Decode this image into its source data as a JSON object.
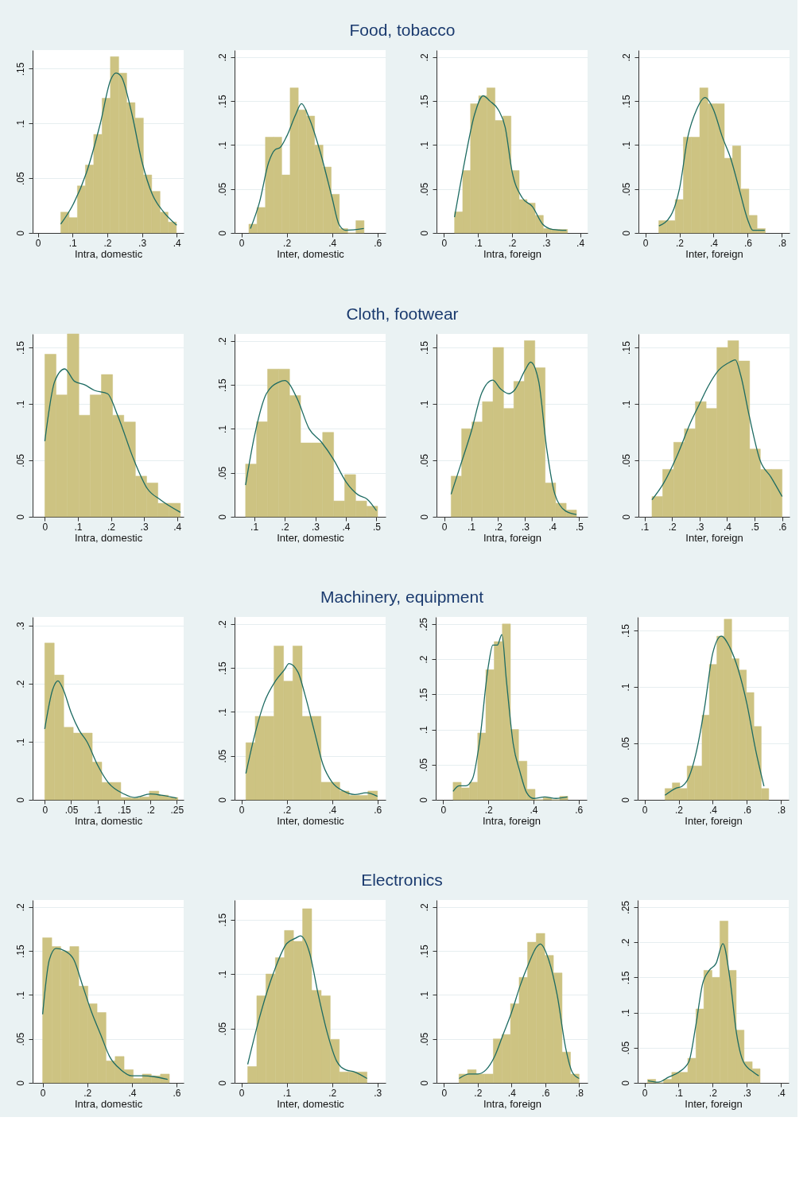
{
  "chart_data": [
    {
      "type": "histogram",
      "xlabel": "Intra, domestic",
      "xlim": [
        -0.015,
        0.42
      ],
      "ylim": [
        0,
        0.167
      ],
      "grid": "y",
      "xticks": [
        {
          "value": 0,
          "label": "0"
        },
        {
          "value": 0.1,
          "label": ".1"
        },
        {
          "value": 0.2,
          "label": ".2"
        },
        {
          "value": 0.3,
          "label": ".3"
        },
        {
          "value": 0.4,
          "label": ".4"
        }
      ],
      "yticks": [
        {
          "value": 0,
          "label": "0"
        },
        {
          "value": 0.05,
          "label": ".05"
        },
        {
          "value": 0.1,
          "label": ".1"
        },
        {
          "value": 0.15,
          "label": ".15"
        }
      ],
      "series": [
        {
          "color": "#cdc382",
          "bins": [
            0.066,
            0.09,
            0.114,
            0.137,
            0.161,
            0.185,
            0.209,
            0.233,
            0.256,
            0.28,
            0.304,
            0.328,
            0.352,
            0.375,
            0.399
          ],
          "values": [
            0.019,
            0.014,
            0.043,
            0.062,
            0.09,
            0.123,
            0.161,
            0.146,
            0.119,
            0.105,
            0.053,
            0.038,
            0.019,
            0.01
          ]
        },
        {
          "type": "line",
          "color": "#1d6b62",
          "x": [
            0.066,
            0.1,
            0.14,
            0.18,
            0.21,
            0.225,
            0.24,
            0.27,
            0.3,
            0.33,
            0.36,
            0.4
          ],
          "values": [
            0.008,
            0.025,
            0.055,
            0.1,
            0.14,
            0.146,
            0.143,
            0.11,
            0.065,
            0.035,
            0.02,
            0.007
          ]
        }
      ]
    },
    {
      "type": "histogram",
      "title": "Food, tobacco",
      "xlabel": "Inter, domestic",
      "xlim": [
        -0.03,
        0.636
      ],
      "ylim": [
        0,
        0.208
      ],
      "grid": "y",
      "xticks": [
        {
          "value": 0,
          "label": "0"
        },
        {
          "value": 0.2,
          "label": ".2"
        },
        {
          "value": 0.4,
          "label": ".4"
        },
        {
          "value": 0.6,
          "label": ".6"
        }
      ],
      "yticks": [
        {
          "value": 0,
          "label": "0"
        },
        {
          "value": 0.05,
          "label": ".05"
        },
        {
          "value": 0.1,
          "label": ".1"
        },
        {
          "value": 0.15,
          "label": ".15"
        },
        {
          "value": 0.2,
          "label": ".2"
        }
      ],
      "series": [
        {
          "color": "#cdc382",
          "bins": [
            0.033,
            0.069,
            0.106,
            0.142,
            0.178,
            0.215,
            0.251,
            0.287,
            0.323,
            0.36,
            0.396,
            0.432,
            0.469,
            0.505,
            0.541
          ],
          "values": [
            0.01,
            0.029,
            0.109,
            0.109,
            0.066,
            0.165,
            0.14,
            0.133,
            0.1,
            0.075,
            0.044,
            0.005,
            0,
            0.014
          ]
        },
        {
          "type": "line",
          "color": "#1d6b62",
          "x": [
            0.04,
            0.08,
            0.12,
            0.15,
            0.17,
            0.2,
            0.24,
            0.265,
            0.3,
            0.35,
            0.4,
            0.43,
            0.46,
            0.54
          ],
          "values": [
            0.005,
            0.035,
            0.08,
            0.095,
            0.097,
            0.11,
            0.135,
            0.147,
            0.13,
            0.09,
            0.04,
            0.01,
            0.003,
            0.005
          ]
        }
      ]
    },
    {
      "type": "histogram",
      "xlabel": "Intra, foreign",
      "xlim": [
        -0.022,
        0.422
      ],
      "ylim": [
        0,
        0.208
      ],
      "grid": "y",
      "xticks": [
        {
          "value": 0,
          "label": "0"
        },
        {
          "value": 0.1,
          "label": ".1"
        },
        {
          "value": 0.2,
          "label": ".2"
        },
        {
          "value": 0.3,
          "label": ".3"
        },
        {
          "value": 0.4,
          "label": ".4"
        }
      ],
      "yticks": [
        {
          "value": 0,
          "label": "0"
        },
        {
          "value": 0.05,
          "label": ".05"
        },
        {
          "value": 0.1,
          "label": ".1"
        },
        {
          "value": 0.15,
          "label": ".15"
        },
        {
          "value": 0.2,
          "label": ".2"
        }
      ],
      "series": [
        {
          "color": "#cdc382",
          "bins": [
            0.031,
            0.055,
            0.078,
            0.102,
            0.126,
            0.15,
            0.173,
            0.197,
            0.221,
            0.244,
            0.268,
            0.292,
            0.315,
            0.339,
            0.363
          ],
          "values": [
            0.024,
            0.071,
            0.147,
            0.156,
            0.165,
            0.128,
            0.133,
            0.071,
            0.038,
            0.034,
            0.02,
            0.005,
            0.004,
            0.004
          ]
        },
        {
          "type": "line",
          "color": "#1d6b62",
          "x": [
            0.031,
            0.06,
            0.09,
            0.115,
            0.135,
            0.16,
            0.18,
            0.2,
            0.23,
            0.26,
            0.29,
            0.32,
            0.36
          ],
          "values": [
            0.018,
            0.08,
            0.135,
            0.156,
            0.15,
            0.14,
            0.12,
            0.07,
            0.04,
            0.03,
            0.01,
            0.004,
            0.003
          ]
        }
      ]
    },
    {
      "type": "histogram",
      "xlabel": "Inter, foreign",
      "xlim": [
        -0.04,
        0.845
      ],
      "ylim": [
        0,
        0.208
      ],
      "grid": "y",
      "xticks": [
        {
          "value": 0,
          "label": "0"
        },
        {
          "value": 0.2,
          "label": ".2"
        },
        {
          "value": 0.4,
          "label": ".4"
        },
        {
          "value": 0.6,
          "label": ".6"
        },
        {
          "value": 0.8,
          "label": ".8"
        }
      ],
      "yticks": [
        {
          "value": 0,
          "label": "0"
        },
        {
          "value": 0.05,
          "label": ".05"
        },
        {
          "value": 0.1,
          "label": ".1"
        },
        {
          "value": 0.15,
          "label": ".15"
        },
        {
          "value": 0.2,
          "label": ".2"
        }
      ],
      "series": [
        {
          "color": "#cdc382",
          "bins": [
            0.079,
            0.127,
            0.175,
            0.223,
            0.271,
            0.319,
            0.367,
            0.415,
            0.463,
            0.511,
            0.559,
            0.607,
            0.655,
            0.703
          ],
          "values": [
            0.014,
            0.014,
            0.038,
            0.109,
            0.109,
            0.165,
            0.147,
            0.147,
            0.085,
            0.099,
            0.05,
            0.02,
            0.005
          ]
        },
        {
          "type": "line",
          "color": "#1d6b62",
          "x": [
            0.08,
            0.15,
            0.2,
            0.25,
            0.3,
            0.35,
            0.4,
            0.45,
            0.5,
            0.55,
            0.6,
            0.63,
            0.7
          ],
          "values": [
            0.008,
            0.02,
            0.05,
            0.11,
            0.14,
            0.154,
            0.14,
            0.11,
            0.085,
            0.05,
            0.015,
            0.003,
            0.003
          ]
        }
      ]
    },
    {
      "type": "histogram",
      "xlabel": "Intra, domestic",
      "xlim": [
        -0.037,
        0.42
      ],
      "ylim": [
        0,
        0.162
      ],
      "grid": "y",
      "xticks": [
        {
          "value": 0,
          "label": "0"
        },
        {
          "value": 0.1,
          "label": ".1"
        },
        {
          "value": 0.2,
          "label": ".2"
        },
        {
          "value": 0.3,
          "label": ".3"
        },
        {
          "value": 0.4,
          "label": ".4"
        }
      ],
      "yticks": [
        {
          "value": 0,
          "label": "0"
        },
        {
          "value": 0.05,
          "label": ".05"
        },
        {
          "value": 0.1,
          "label": ".1"
        },
        {
          "value": 0.15,
          "label": ".15"
        }
      ],
      "series": [
        {
          "color": "#cdc382",
          "bins": [
            0,
            0.034,
            0.068,
            0.103,
            0.137,
            0.171,
            0.205,
            0.239,
            0.274,
            0.308,
            0.342,
            0.376,
            0.41
          ],
          "values": [
            0.144,
            0.108,
            0.162,
            0.09,
            0.108,
            0.126,
            0.09,
            0.084,
            0.036,
            0.03,
            0.012,
            0.012
          ]
        },
        {
          "type": "line",
          "color": "#1d6b62",
          "x": [
            0,
            0.03,
            0.06,
            0.09,
            0.12,
            0.15,
            0.19,
            0.22,
            0.27,
            0.31,
            0.35,
            0.41
          ],
          "values": [
            0.067,
            0.12,
            0.131,
            0.12,
            0.117,
            0.112,
            0.109,
            0.09,
            0.05,
            0.025,
            0.015,
            0.004
          ]
        }
      ]
    },
    {
      "type": "histogram",
      "title": "Cloth, footwear",
      "xlabel": "Inter, domestic",
      "xlim": [
        0.036,
        0.53
      ],
      "ylim": [
        0,
        0.208
      ],
      "grid": "y",
      "xticks": [
        {
          "value": 0.1,
          "label": ".1"
        },
        {
          "value": 0.2,
          "label": ".2"
        },
        {
          "value": 0.3,
          "label": ".3"
        },
        {
          "value": 0.4,
          "label": ".4"
        },
        {
          "value": 0.5,
          "label": ".5"
        }
      ],
      "yticks": [
        {
          "value": 0,
          "label": "0"
        },
        {
          "value": 0.05,
          "label": ".05"
        },
        {
          "value": 0.1,
          "label": ".1"
        },
        {
          "value": 0.15,
          "label": ".15"
        },
        {
          "value": 0.2,
          "label": ".2"
        }
      ],
      "series": [
        {
          "color": "#cdc382",
          "bins": [
            0.072,
            0.108,
            0.144,
            0.18,
            0.216,
            0.252,
            0.288,
            0.324,
            0.36,
            0.396,
            0.432,
            0.468,
            0.504
          ],
          "values": [
            0.06,
            0.108,
            0.168,
            0.168,
            0.138,
            0.084,
            0.084,
            0.096,
            0.018,
            0.048,
            0.018,
            0.012
          ]
        },
        {
          "type": "line",
          "color": "#1d6b62",
          "x": [
            0.072,
            0.1,
            0.14,
            0.18,
            0.2,
            0.24,
            0.28,
            0.32,
            0.36,
            0.4,
            0.44,
            0.47,
            0.5
          ],
          "values": [
            0.036,
            0.09,
            0.14,
            0.153,
            0.155,
            0.135,
            0.1,
            0.085,
            0.065,
            0.04,
            0.025,
            0.02,
            0.007
          ]
        }
      ]
    },
    {
      "type": "histogram",
      "xlabel": "Intra, foreign",
      "xlim": [
        -0.028,
        0.531
      ],
      "ylim": [
        0,
        0.162
      ],
      "grid": "y",
      "xticks": [
        {
          "value": 0,
          "label": "0"
        },
        {
          "value": 0.1,
          "label": ".1"
        },
        {
          "value": 0.2,
          "label": ".2"
        },
        {
          "value": 0.3,
          "label": ".3"
        },
        {
          "value": 0.4,
          "label": ".4"
        },
        {
          "value": 0.5,
          "label": ".5"
        }
      ],
      "yticks": [
        {
          "value": 0,
          "label": "0"
        },
        {
          "value": 0.05,
          "label": ".05"
        },
        {
          "value": 0.1,
          "label": ".1"
        },
        {
          "value": 0.15,
          "label": ".15"
        }
      ],
      "series": [
        {
          "color": "#cdc382",
          "bins": [
            0.026,
            0.065,
            0.103,
            0.142,
            0.181,
            0.22,
            0.258,
            0.297,
            0.336,
            0.374,
            0.413,
            0.452,
            0.49
          ],
          "values": [
            0.036,
            0.078,
            0.084,
            0.102,
            0.15,
            0.096,
            0.12,
            0.156,
            0.132,
            0.03,
            0.012,
            0.006
          ]
        },
        {
          "type": "line",
          "color": "#1d6b62",
          "x": [
            0.026,
            0.06,
            0.1,
            0.14,
            0.18,
            0.21,
            0.24,
            0.26,
            0.3,
            0.32,
            0.35,
            0.38,
            0.41,
            0.45,
            0.49
          ],
          "values": [
            0.02,
            0.045,
            0.075,
            0.11,
            0.121,
            0.113,
            0.109,
            0.112,
            0.13,
            0.137,
            0.12,
            0.06,
            0.02,
            0.005,
            0.002
          ]
        }
      ]
    },
    {
      "type": "histogram",
      "xlabel": "Inter, foreign",
      "xlim": [
        0.078,
        0.627
      ],
      "ylim": [
        0,
        0.162
      ],
      "grid": "y",
      "xticks": [
        {
          "value": 0.1,
          "label": ".1"
        },
        {
          "value": 0.2,
          "label": ".2"
        },
        {
          "value": 0.3,
          "label": ".3"
        },
        {
          "value": 0.4,
          "label": ".4"
        },
        {
          "value": 0.5,
          "label": ".5"
        },
        {
          "value": 0.6,
          "label": ".6"
        }
      ],
      "yticks": [
        {
          "value": 0,
          "label": "0"
        },
        {
          "value": 0.05,
          "label": ".05"
        },
        {
          "value": 0.1,
          "label": ".1"
        },
        {
          "value": 0.15,
          "label": ".15"
        }
      ],
      "series": [
        {
          "color": "#cdc382",
          "bins": [
            0.127,
            0.166,
            0.206,
            0.245,
            0.285,
            0.324,
            0.363,
            0.403,
            0.442,
            0.482,
            0.521,
            0.56,
            0.6
          ],
          "values": [
            0.018,
            0.042,
            0.066,
            0.078,
            0.102,
            0.096,
            0.15,
            0.156,
            0.138,
            0.06,
            0.042,
            0.042
          ]
        },
        {
          "type": "line",
          "color": "#1d6b62",
          "x": [
            0.127,
            0.17,
            0.22,
            0.27,
            0.3,
            0.33,
            0.37,
            0.41,
            0.43,
            0.45,
            0.48,
            0.52,
            0.56,
            0.6
          ],
          "values": [
            0.015,
            0.03,
            0.055,
            0.085,
            0.1,
            0.115,
            0.13,
            0.137,
            0.139,
            0.125,
            0.09,
            0.05,
            0.035,
            0.018
          ]
        }
      ]
    },
    {
      "type": "histogram",
      "xlabel": "Intra, domestic",
      "xlim": [
        -0.023,
        0.263
      ],
      "ylim": [
        0,
        0.315
      ],
      "grid": "y",
      "xticks": [
        {
          "value": 0,
          "label": "0"
        },
        {
          "value": 0.05,
          "label": ".05"
        },
        {
          "value": 0.1,
          "label": ".1"
        },
        {
          "value": 0.15,
          "label": ".15"
        },
        {
          "value": 0.2,
          "label": ".2"
        },
        {
          "value": 0.25,
          "label": ".25"
        }
      ],
      "yticks": [
        {
          "value": 0,
          "label": "0"
        },
        {
          "value": 0.1,
          "label": ".1"
        },
        {
          "value": 0.2,
          "label": ".2"
        },
        {
          "value": 0.3,
          "label": ".3"
        }
      ],
      "series": [
        {
          "color": "#cdc382",
          "bins": [
            0,
            0.018,
            0.036,
            0.054,
            0.072,
            0.09,
            0.108,
            0.126,
            0.144,
            0.162,
            0.18,
            0.198,
            0.216,
            0.234,
            0.252
          ],
          "values": [
            0.27,
            0.215,
            0.125,
            0.115,
            0.115,
            0.065,
            0.03,
            0.03,
            0.004,
            0.003,
            0.005,
            0.015,
            0.008,
            0.004
          ]
        },
        {
          "type": "line",
          "color": "#1d6b62",
          "x": [
            0,
            0.015,
            0.025,
            0.035,
            0.05,
            0.065,
            0.08,
            0.1,
            0.12,
            0.15,
            0.17,
            0.2,
            0.22,
            0.25
          ],
          "values": [
            0.122,
            0.19,
            0.205,
            0.19,
            0.15,
            0.12,
            0.1,
            0.06,
            0.03,
            0.01,
            0.004,
            0.01,
            0.008,
            0.003
          ]
        }
      ]
    },
    {
      "type": "histogram",
      "title": "Machinery, equipment",
      "xlabel": "Inter, domestic",
      "xlim": [
        -0.03,
        0.636
      ],
      "ylim": [
        0,
        0.208
      ],
      "grid": "y",
      "xticks": [
        {
          "value": 0,
          "label": "0"
        },
        {
          "value": 0.2,
          "label": ".2"
        },
        {
          "value": 0.4,
          "label": ".4"
        },
        {
          "value": 0.6,
          "label": ".6"
        }
      ],
      "yticks": [
        {
          "value": 0,
          "label": "0"
        },
        {
          "value": 0.05,
          "label": ".05"
        },
        {
          "value": 0.1,
          "label": ".1"
        },
        {
          "value": 0.15,
          "label": ".15"
        },
        {
          "value": 0.2,
          "label": ".2"
        }
      ],
      "series": [
        {
          "color": "#cdc382",
          "bins": [
            0.02,
            0.061,
            0.103,
            0.144,
            0.186,
            0.227,
            0.268,
            0.31,
            0.351,
            0.393,
            0.434,
            0.475,
            0.517,
            0.558,
            0.6
          ],
          "values": [
            0.065,
            0.095,
            0.095,
            0.175,
            0.135,
            0.175,
            0.095,
            0.095,
            0.02,
            0.02,
            0.01,
            0.005,
            0.005,
            0.01
          ]
        },
        {
          "type": "line",
          "color": "#1d6b62",
          "x": [
            0.02,
            0.06,
            0.1,
            0.15,
            0.19,
            0.21,
            0.25,
            0.28,
            0.32,
            0.36,
            0.4,
            0.45,
            0.5,
            0.55,
            0.6
          ],
          "values": [
            0.03,
            0.075,
            0.11,
            0.135,
            0.148,
            0.155,
            0.145,
            0.12,
            0.08,
            0.04,
            0.02,
            0.01,
            0.006,
            0.008,
            0.004
          ]
        }
      ]
    },
    {
      "type": "histogram",
      "xlabel": "Intra, foreign",
      "xlim": [
        -0.033,
        0.636
      ],
      "ylim": [
        0,
        0.26
      ],
      "grid": "y",
      "xticks": [
        {
          "value": 0,
          "label": "0"
        },
        {
          "value": 0.2,
          "label": ".2"
        },
        {
          "value": 0.4,
          "label": ".4"
        },
        {
          "value": 0.6,
          "label": ".6"
        }
      ],
      "yticks": [
        {
          "value": 0,
          "label": "0"
        },
        {
          "value": 0.05,
          "label": ".05"
        },
        {
          "value": 0.1,
          "label": ".1"
        },
        {
          "value": 0.15,
          "label": ".15"
        },
        {
          "value": 0.2,
          "label": ".2"
        },
        {
          "value": 0.25,
          "label": ".25"
        }
      ],
      "series": [
        {
          "color": "#cdc382",
          "bins": [
            0.044,
            0.08,
            0.117,
            0.153,
            0.189,
            0.226,
            0.262,
            0.298,
            0.334,
            0.371,
            0.407,
            0.443,
            0.48,
            0.516,
            0.552
          ],
          "values": [
            0.025,
            0.017,
            0.025,
            0.095,
            0.185,
            0.225,
            0.25,
            0.1,
            0.055,
            0.015,
            0,
            0.003,
            0,
            0.005
          ]
        },
        {
          "type": "line",
          "color": "#1d6b62",
          "x": [
            0.044,
            0.07,
            0.1,
            0.13,
            0.16,
            0.2,
            0.22,
            0.24,
            0.26,
            0.28,
            0.31,
            0.34,
            0.37,
            0.4,
            0.45,
            0.5,
            0.55
          ],
          "values": [
            0.012,
            0.02,
            0.02,
            0.03,
            0.08,
            0.19,
            0.22,
            0.22,
            0.235,
            0.17,
            0.08,
            0.04,
            0.01,
            0.002,
            0.004,
            0.002,
            0.004
          ]
        }
      ]
    },
    {
      "type": "histogram",
      "xlabel": "Inter, foreign",
      "xlim": [
        -0.04,
        0.845
      ],
      "ylim": [
        0,
        0.162
      ],
      "grid": "y",
      "xticks": [
        {
          "value": 0,
          "label": "0"
        },
        {
          "value": 0.2,
          "label": ".2"
        },
        {
          "value": 0.4,
          "label": ".4"
        },
        {
          "value": 0.6,
          "label": ".6"
        },
        {
          "value": 0.8,
          "label": ".8"
        }
      ],
      "yticks": [
        {
          "value": 0,
          "label": "0"
        },
        {
          "value": 0.05,
          "label": ".05"
        },
        {
          "value": 0.1,
          "label": ".1"
        },
        {
          "value": 0.15,
          "label": ".15"
        }
      ],
      "series": [
        {
          "color": "#cdc382",
          "bins": [
            0.12,
            0.163,
            0.207,
            0.25,
            0.294,
            0.337,
            0.38,
            0.424,
            0.467,
            0.511,
            0.554,
            0.597,
            0.641,
            0.684,
            0.728
          ],
          "values": [
            0.01,
            0.015,
            0.01,
            0.03,
            0.03,
            0.075,
            0.12,
            0.145,
            0.16,
            0.125,
            0.115,
            0.095,
            0.065,
            0.01
          ]
        },
        {
          "type": "line",
          "color": "#1d6b62",
          "x": [
            0.12,
            0.18,
            0.22,
            0.26,
            0.3,
            0.35,
            0.4,
            0.45,
            0.5,
            0.55,
            0.6,
            0.65,
            0.7
          ],
          "values": [
            0.004,
            0.01,
            0.012,
            0.02,
            0.04,
            0.08,
            0.13,
            0.145,
            0.135,
            0.115,
            0.085,
            0.045,
            0.012
          ]
        }
      ]
    },
    {
      "type": "histogram",
      "xlabel": "Intra, domestic",
      "xlim": [
        -0.045,
        0.632
      ],
      "ylim": [
        0,
        0.208
      ],
      "grid": "y",
      "xticks": [
        {
          "value": 0,
          "label": "0"
        },
        {
          "value": 0.2,
          "label": ".2"
        },
        {
          "value": 0.4,
          "label": ".4"
        },
        {
          "value": 0.6,
          "label": ".6"
        }
      ],
      "yticks": [
        {
          "value": 0,
          "label": "0"
        },
        {
          "value": 0.05,
          "label": ".05"
        },
        {
          "value": 0.1,
          "label": ".1"
        },
        {
          "value": 0.15,
          "label": ".15"
        },
        {
          "value": 0.2,
          "label": ".2"
        }
      ],
      "series": [
        {
          "color": "#cdc382",
          "bins": [
            0,
            0.041,
            0.081,
            0.122,
            0.162,
            0.203,
            0.244,
            0.284,
            0.325,
            0.365,
            0.406,
            0.447,
            0.487,
            0.528,
            0.568
          ],
          "values": [
            0.165,
            0.155,
            0.15,
            0.155,
            0.11,
            0.09,
            0.08,
            0.025,
            0.03,
            0.015,
            0.005,
            0.01,
            0.008,
            0.01
          ]
        },
        {
          "type": "line",
          "color": "#1d6b62",
          "x": [
            0,
            0.03,
            0.06,
            0.1,
            0.14,
            0.18,
            0.22,
            0.26,
            0.3,
            0.35,
            0.4,
            0.45,
            0.5,
            0.56
          ],
          "values": [
            0.078,
            0.14,
            0.153,
            0.15,
            0.14,
            0.11,
            0.08,
            0.055,
            0.03,
            0.015,
            0.008,
            0.008,
            0.007,
            0.004
          ]
        }
      ]
    },
    {
      "type": "histogram",
      "title": "Electronics",
      "xlabel": "Inter, domestic",
      "xlim": [
        -0.015,
        0.318
      ],
      "ylim": [
        0,
        0.168
      ],
      "grid": "y",
      "xticks": [
        {
          "value": 0,
          "label": "0"
        },
        {
          "value": 0.1,
          "label": ".1"
        },
        {
          "value": 0.2,
          "label": ".2"
        },
        {
          "value": 0.3,
          "label": ".3"
        }
      ],
      "yticks": [
        {
          "value": 0,
          "label": "0"
        },
        {
          "value": 0.05,
          "label": ".05"
        },
        {
          "value": 0.1,
          "label": ".1"
        },
        {
          "value": 0.15,
          "label": ".15"
        }
      ],
      "series": [
        {
          "color": "#cdc382",
          "bins": [
            0.014,
            0.034,
            0.054,
            0.075,
            0.095,
            0.115,
            0.135,
            0.155,
            0.176,
            0.196,
            0.216,
            0.236,
            0.256,
            0.277
          ],
          "values": [
            0.015,
            0.08,
            0.1,
            0.115,
            0.14,
            0.13,
            0.16,
            0.085,
            0.08,
            0.04,
            0.01,
            0.01,
            0.01
          ]
        },
        {
          "type": "line",
          "color": "#1d6b62",
          "x": [
            0.014,
            0.04,
            0.07,
            0.1,
            0.12,
            0.13,
            0.15,
            0.17,
            0.19,
            0.21,
            0.23,
            0.25,
            0.277
          ],
          "values": [
            0.017,
            0.06,
            0.1,
            0.128,
            0.133,
            0.135,
            0.12,
            0.08,
            0.045,
            0.02,
            0.012,
            0.01,
            0.004
          ]
        }
      ]
    },
    {
      "type": "histogram",
      "xlabel": "Intra, foreign",
      "xlim": [
        -0.044,
        0.85
      ],
      "ylim": [
        0,
        0.208
      ],
      "grid": "y",
      "xticks": [
        {
          "value": 0,
          "label": "0"
        },
        {
          "value": 0.2,
          "label": ".2"
        },
        {
          "value": 0.4,
          "label": ".4"
        },
        {
          "value": 0.6,
          "label": ".6"
        },
        {
          "value": 0.8,
          "label": ".8"
        }
      ],
      "yticks": [
        {
          "value": 0,
          "label": "0"
        },
        {
          "value": 0.05,
          "label": ".05"
        },
        {
          "value": 0.1,
          "label": ".1"
        },
        {
          "value": 0.15,
          "label": ".15"
        },
        {
          "value": 0.2,
          "label": ".2"
        }
      ],
      "series": [
        {
          "color": "#cdc382",
          "bins": [
            0.089,
            0.14,
            0.191,
            0.241,
            0.292,
            0.343,
            0.394,
            0.445,
            0.495,
            0.546,
            0.597,
            0.648,
            0.699,
            0.749,
            0.8
          ],
          "values": [
            0.01,
            0.015,
            0.01,
            0.01,
            0.05,
            0.055,
            0.09,
            0.12,
            0.16,
            0.17,
            0.145,
            0.125,
            0.035,
            0.01
          ]
        },
        {
          "type": "line",
          "color": "#1d6b62",
          "x": [
            0.09,
            0.15,
            0.2,
            0.25,
            0.3,
            0.35,
            0.4,
            0.45,
            0.5,
            0.55,
            0.57,
            0.62,
            0.67,
            0.72,
            0.76,
            0.8
          ],
          "values": [
            0.005,
            0.01,
            0.01,
            0.015,
            0.03,
            0.055,
            0.08,
            0.11,
            0.135,
            0.155,
            0.158,
            0.14,
            0.1,
            0.04,
            0.012,
            0.005
          ]
        }
      ]
    },
    {
      "type": "histogram",
      "xlabel": "Inter, foreign",
      "xlim": [
        -0.02,
        0.423
      ],
      "ylim": [
        0,
        0.26
      ],
      "grid": "y",
      "xticks": [
        {
          "value": 0,
          "label": "0"
        },
        {
          "value": 0.1,
          "label": ".1"
        },
        {
          "value": 0.2,
          "label": ".2"
        },
        {
          "value": 0.3,
          "label": ".3"
        },
        {
          "value": 0.4,
          "label": ".4"
        }
      ],
      "yticks": [
        {
          "value": 0,
          "label": "0"
        },
        {
          "value": 0.05,
          "label": ".05"
        },
        {
          "value": 0.1,
          "label": ".1"
        },
        {
          "value": 0.15,
          "label": ".15"
        },
        {
          "value": 0.2,
          "label": ".2"
        },
        {
          "value": 0.25,
          "label": ".25"
        }
      ],
      "series": [
        {
          "color": "#cdc382",
          "bins": [
            0.009,
            0.033,
            0.056,
            0.08,
            0.103,
            0.127,
            0.151,
            0.174,
            0.198,
            0.221,
            0.245,
            0.269,
            0.292,
            0.316,
            0.339
          ],
          "values": [
            0.005,
            0,
            0.005,
            0.015,
            0.015,
            0.035,
            0.105,
            0.16,
            0.15,
            0.23,
            0.16,
            0.075,
            0.03,
            0.02
          ]
        },
        {
          "type": "line",
          "color": "#1d6b62",
          "x": [
            0.01,
            0.04,
            0.07,
            0.1,
            0.13,
            0.15,
            0.17,
            0.19,
            0.21,
            0.23,
            0.25,
            0.27,
            0.29,
            0.32,
            0.335
          ],
          "values": [
            0.003,
            0.001,
            0.008,
            0.015,
            0.03,
            0.08,
            0.14,
            0.16,
            0.17,
            0.198,
            0.15,
            0.07,
            0.03,
            0.015,
            0.01
          ]
        }
      ]
    }
  ]
}
